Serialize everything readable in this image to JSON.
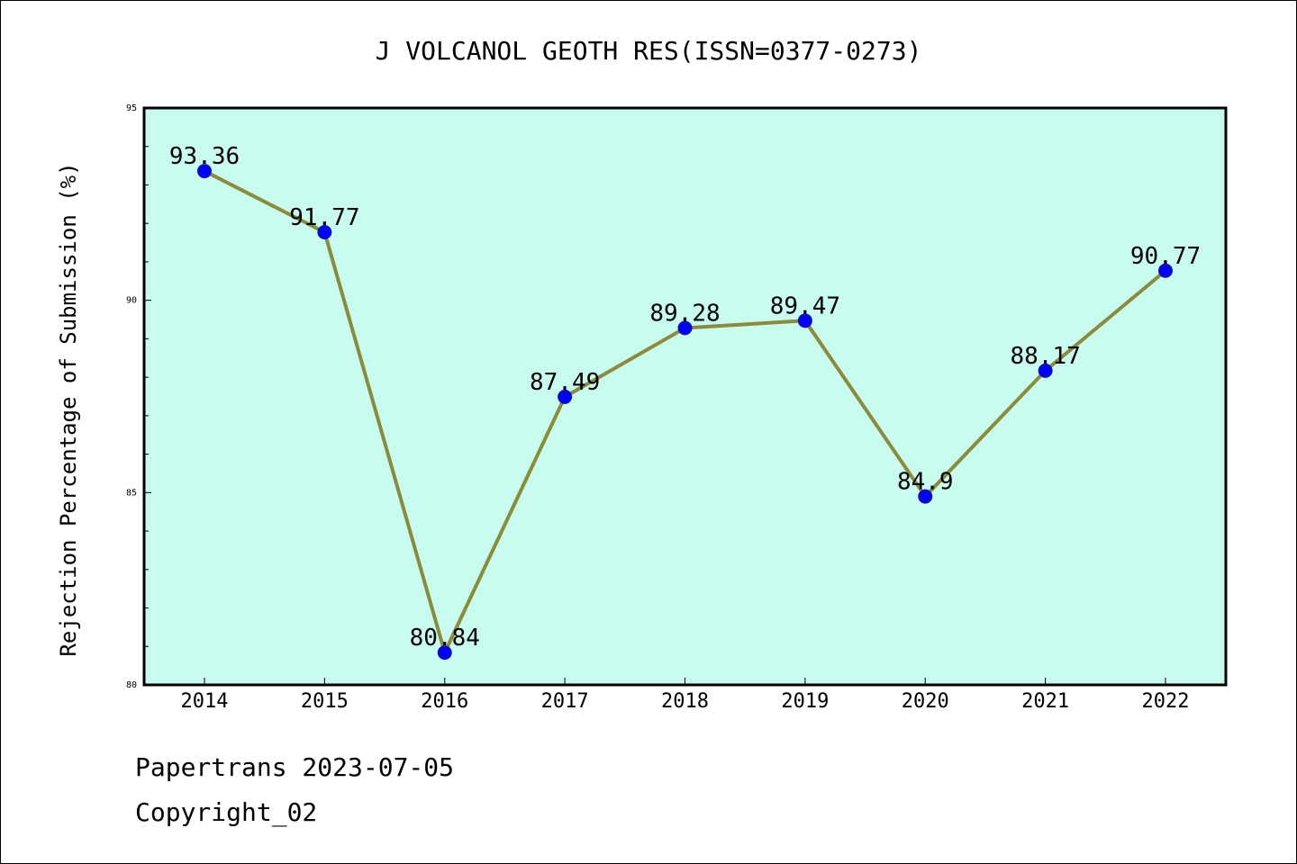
{
  "chart_data": {
    "type": "line",
    "title": "J VOLCANOL GEOTH RES(ISSN=0377-0273)",
    "xlabel": "",
    "ylabel": "Rejection Percentage of Submission (%)",
    "categories": [
      "2014",
      "2015",
      "2016",
      "2017",
      "2018",
      "2019",
      "2020",
      "2021",
      "2022"
    ],
    "series": [
      {
        "values": [
          93.36,
          91.77,
          80.84,
          87.49,
          89.28,
          89.47,
          84.9,
          88.17,
          90.77
        ],
        "labels": [
          "93.36",
          "91.77",
          "80.84",
          "87.49",
          "89.28",
          "89.47",
          "84.9",
          "88.17",
          "90.77"
        ]
      }
    ],
    "ylim": [
      80,
      95
    ],
    "yticks": [
      "80",
      "85",
      "90",
      "95"
    ],
    "minor_tick_step": 1,
    "grid": false,
    "legend": "none",
    "colors": {
      "plot_background": "#c8fcee",
      "line": "#8b8b3a",
      "marker": "#0000ff",
      "axis": "#000000"
    }
  },
  "footer": {
    "line1": "Papertrans 2023-07-05",
    "line2": "Copyright_02"
  }
}
